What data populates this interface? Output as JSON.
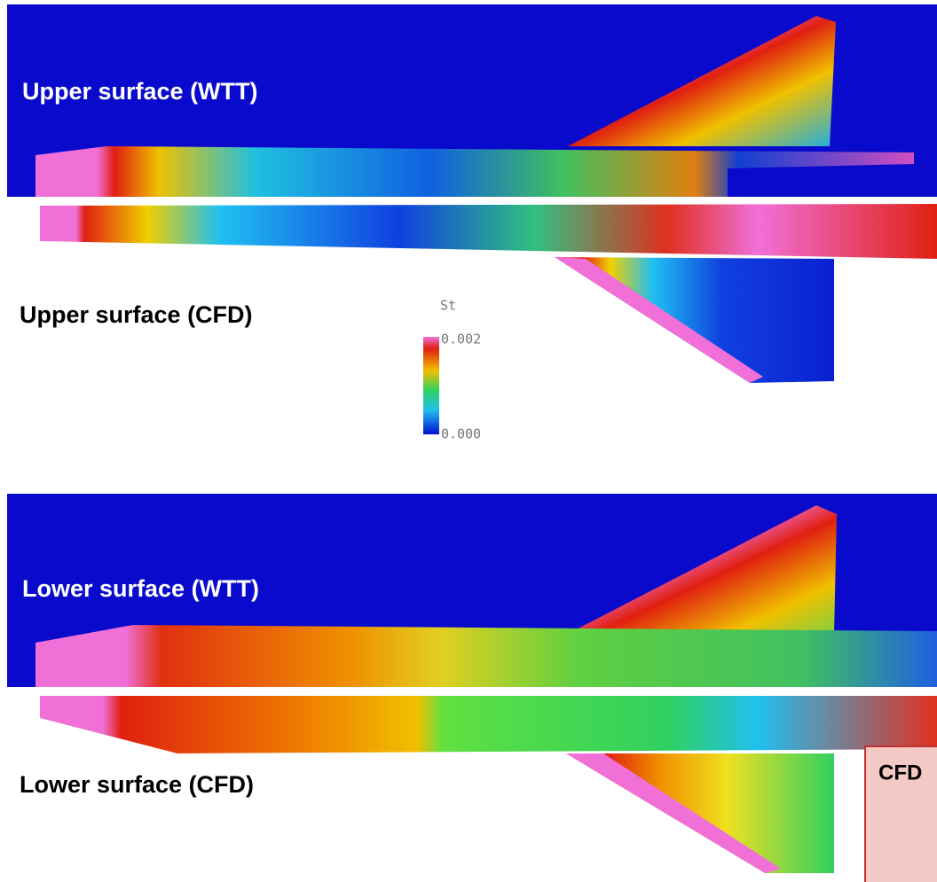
{
  "panels": [
    {
      "label": "Upper surface (WTT)"
    },
    {
      "label": "Upper surface (CFD)"
    },
    {
      "label": "Lower surface (WTT)"
    },
    {
      "label": "Lower surface (CFD)"
    }
  ],
  "colorbar": {
    "title": "St",
    "max_label": "0.002",
    "min_label": "0.000"
  },
  "callout": "CFD"
}
